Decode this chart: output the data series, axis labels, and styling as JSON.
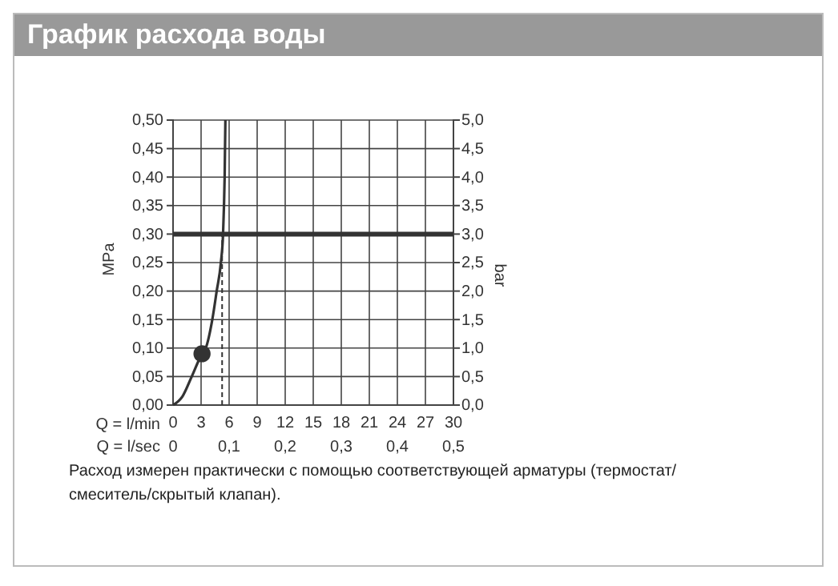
{
  "chart_data": {
    "type": "line",
    "title": "График расхода воды",
    "xlabel": "Q = l/min",
    "x2label": "Q = l/sec",
    "ylabel": "MPa",
    "y2label": "bar",
    "series": [
      {
        "color": "#333333",
        "x": [
          0,
          1,
          2,
          3.1,
          3.5,
          4.2,
          4.67,
          5.12,
          5.35,
          5.45,
          5.52,
          5.6
        ],
        "values": [
          0,
          0.015,
          0.05,
          0.09,
          0.1,
          0.15,
          0.2,
          0.25,
          0.3,
          0.35,
          0.4,
          0.5
        ]
      },
      {
        "type": "scatter",
        "color": "#333333",
        "marker": "circle",
        "x": [
          3.1
        ],
        "values": [
          0.09
        ]
      },
      {
        "color": "#333333",
        "line_style": "dashed",
        "x": [
          5.25,
          5.25
        ],
        "values": [
          0,
          0.3
        ]
      }
    ],
    "ref_lines": [
      {
        "axis": "y",
        "value": 0.3,
        "color": "#333333"
      }
    ],
    "xlim": [
      0,
      30
    ],
    "xticks": [
      0,
      3,
      6,
      9,
      12,
      15,
      18,
      21,
      24,
      27,
      30
    ],
    "x2lim": [
      0,
      0.5
    ],
    "x2ticks": [
      0,
      {
        "value": 0.1,
        "label": "0,1"
      },
      {
        "value": 0.2,
        "label": "0,2"
      },
      {
        "value": 0.3,
        "label": "0,3"
      },
      {
        "value": 0.4,
        "label": "0,4"
      },
      {
        "value": 0.5,
        "label": "0,5"
      }
    ],
    "ylim": [
      0,
      0.5
    ],
    "yticks": [
      {
        "value": 0,
        "label": "0,00"
      },
      {
        "value": 0.05,
        "label": "0,05"
      },
      {
        "value": 0.1,
        "label": "0,10"
      },
      {
        "value": 0.15,
        "label": "0,15"
      },
      {
        "value": 0.2,
        "label": "0,20"
      },
      {
        "value": 0.25,
        "label": "0,25"
      },
      {
        "value": 0.3,
        "label": "0,30"
      },
      {
        "value": 0.35,
        "label": "0,35"
      },
      {
        "value": 0.4,
        "label": "0,40"
      },
      {
        "value": 0.45,
        "label": "0,45"
      },
      {
        "value": 0.5,
        "label": "0,50"
      }
    ],
    "y2lim": [
      0,
      5
    ],
    "y2ticks": [
      {
        "value": 0,
        "label": "0,0"
      },
      {
        "value": 0.5,
        "label": "0,5"
      },
      {
        "value": 1,
        "label": "1,0"
      },
      {
        "value": 1.5,
        "label": "1,5"
      },
      {
        "value": 2,
        "label": "2,0"
      },
      {
        "value": 2.5,
        "label": "2,5"
      },
      {
        "value": 3,
        "label": "3,0"
      },
      {
        "value": 3.5,
        "label": "3,5"
      },
      {
        "value": 4,
        "label": "4,0"
      },
      {
        "value": 4.5,
        "label": "4,5"
      },
      {
        "value": 5,
        "label": "5,0"
      }
    ],
    "grid": true,
    "annotations": [
      "Расход измерен практически с помощью соответствующей арматуры (термостат/ смеситель/скрытый клапан)."
    ]
  }
}
